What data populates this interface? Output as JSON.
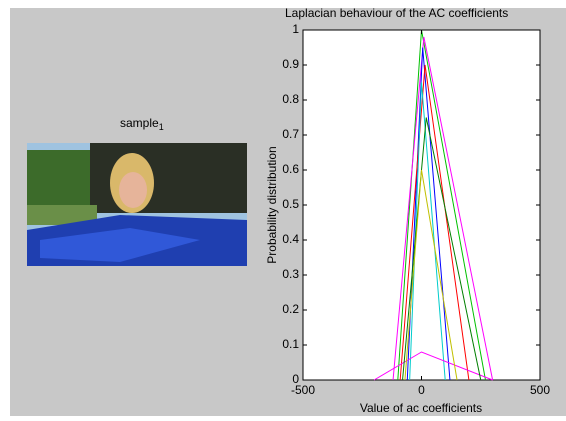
{
  "image_panel": {
    "title": "sample",
    "subscript": "1"
  },
  "chart_data": {
    "type": "line",
    "title": "Laplacian behaviour of the AC coefficients",
    "x_label": "Value of ac coefficients",
    "y_label": "Probability distribution",
    "xlim": [
      -500,
      500
    ],
    "xticks": [
      -500,
      0,
      500
    ],
    "ylim": [
      0,
      1
    ],
    "yticks": [
      0,
      0.1,
      0.2,
      0.3,
      0.4,
      0.5,
      0.6,
      0.7,
      0.8,
      0.9,
      1
    ],
    "series": [
      {
        "color": "#00c000",
        "x": [
          -100,
          0,
          270
        ],
        "values": [
          0,
          1,
          0
        ]
      },
      {
        "color": "#ff00ff",
        "x": [
          -120,
          10,
          300
        ],
        "values": [
          0,
          0.98,
          0
        ]
      },
      {
        "color": "#0000ff",
        "x": [
          -60,
          5,
          120
        ],
        "values": [
          0,
          0.95,
          0
        ]
      },
      {
        "color": "#ff0000",
        "x": [
          -90,
          15,
          200
        ],
        "values": [
          0,
          0.9,
          0
        ]
      },
      {
        "color": "#00cccc",
        "x": [
          -50,
          0,
          100
        ],
        "values": [
          0,
          0.85,
          0
        ]
      },
      {
        "color": "#ff00ff",
        "x": [
          -200,
          0,
          300
        ],
        "values": [
          0,
          0.08,
          0
        ]
      },
      {
        "color": "#007f00",
        "x": [
          -80,
          20,
          250
        ],
        "values": [
          0,
          0.75,
          0
        ]
      },
      {
        "color": "#c0c000",
        "x": [
          -70,
          0,
          150
        ],
        "values": [
          0,
          0.6,
          0
        ]
      }
    ]
  }
}
